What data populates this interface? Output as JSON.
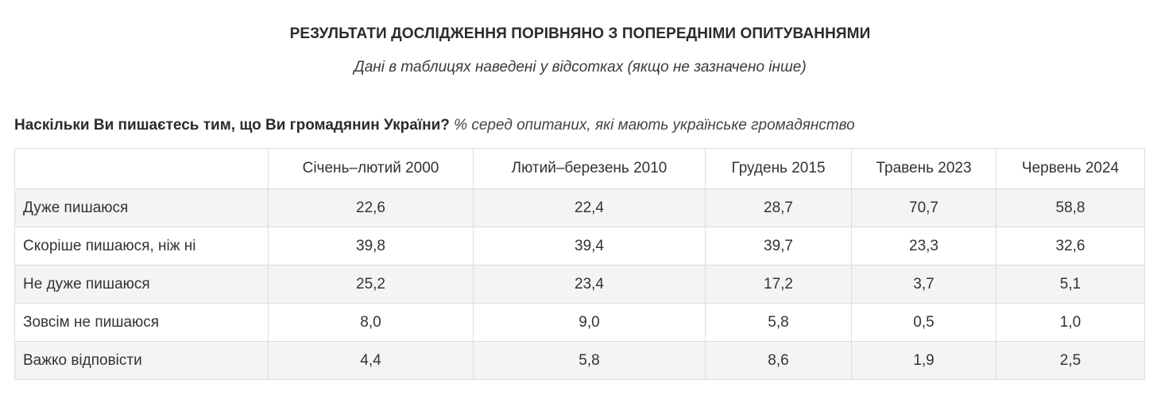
{
  "header": {
    "title": "РЕЗУЛЬТАТИ ДОСЛІДЖЕННЯ ПОРІВНЯНО З ПОПЕРЕДНІМИ ОПИТУВАННЯМИ",
    "subtitle": "Дані в таблицях наведені у відсотках (якщо не зазначено інше)"
  },
  "question": {
    "text": "Наскільки Ви пишаєтесь тим, що Ви громадянин України?",
    "note": "% серед опитаних, які мають українське громадянство"
  },
  "table": {
    "columns": [
      "",
      "Січень–лютий 2000",
      "Лютий–березень 2010",
      "Грудень 2015",
      "Травень 2023",
      "Червень 2024"
    ],
    "rows": [
      {
        "label": "Дуже пишаюся",
        "values": [
          "22,6",
          "22,4",
          "28,7",
          "70,7",
          "58,8"
        ]
      },
      {
        "label": "Скоріше пишаюся, ніж ні",
        "values": [
          "39,8",
          "39,4",
          "39,7",
          "23,3",
          "32,6"
        ]
      },
      {
        "label": "Не дуже пишаюся",
        "values": [
          "25,2",
          "23,4",
          "17,2",
          "3,7",
          "5,1"
        ]
      },
      {
        "label": "Зовсім не пишаюся",
        "values": [
          "8,0",
          "9,0",
          "5,8",
          "0,5",
          "1,0"
        ]
      },
      {
        "label": "Важко відповісти",
        "values": [
          "4,4",
          "5,8",
          "8,6",
          "1,9",
          "2,5"
        ]
      }
    ]
  }
}
